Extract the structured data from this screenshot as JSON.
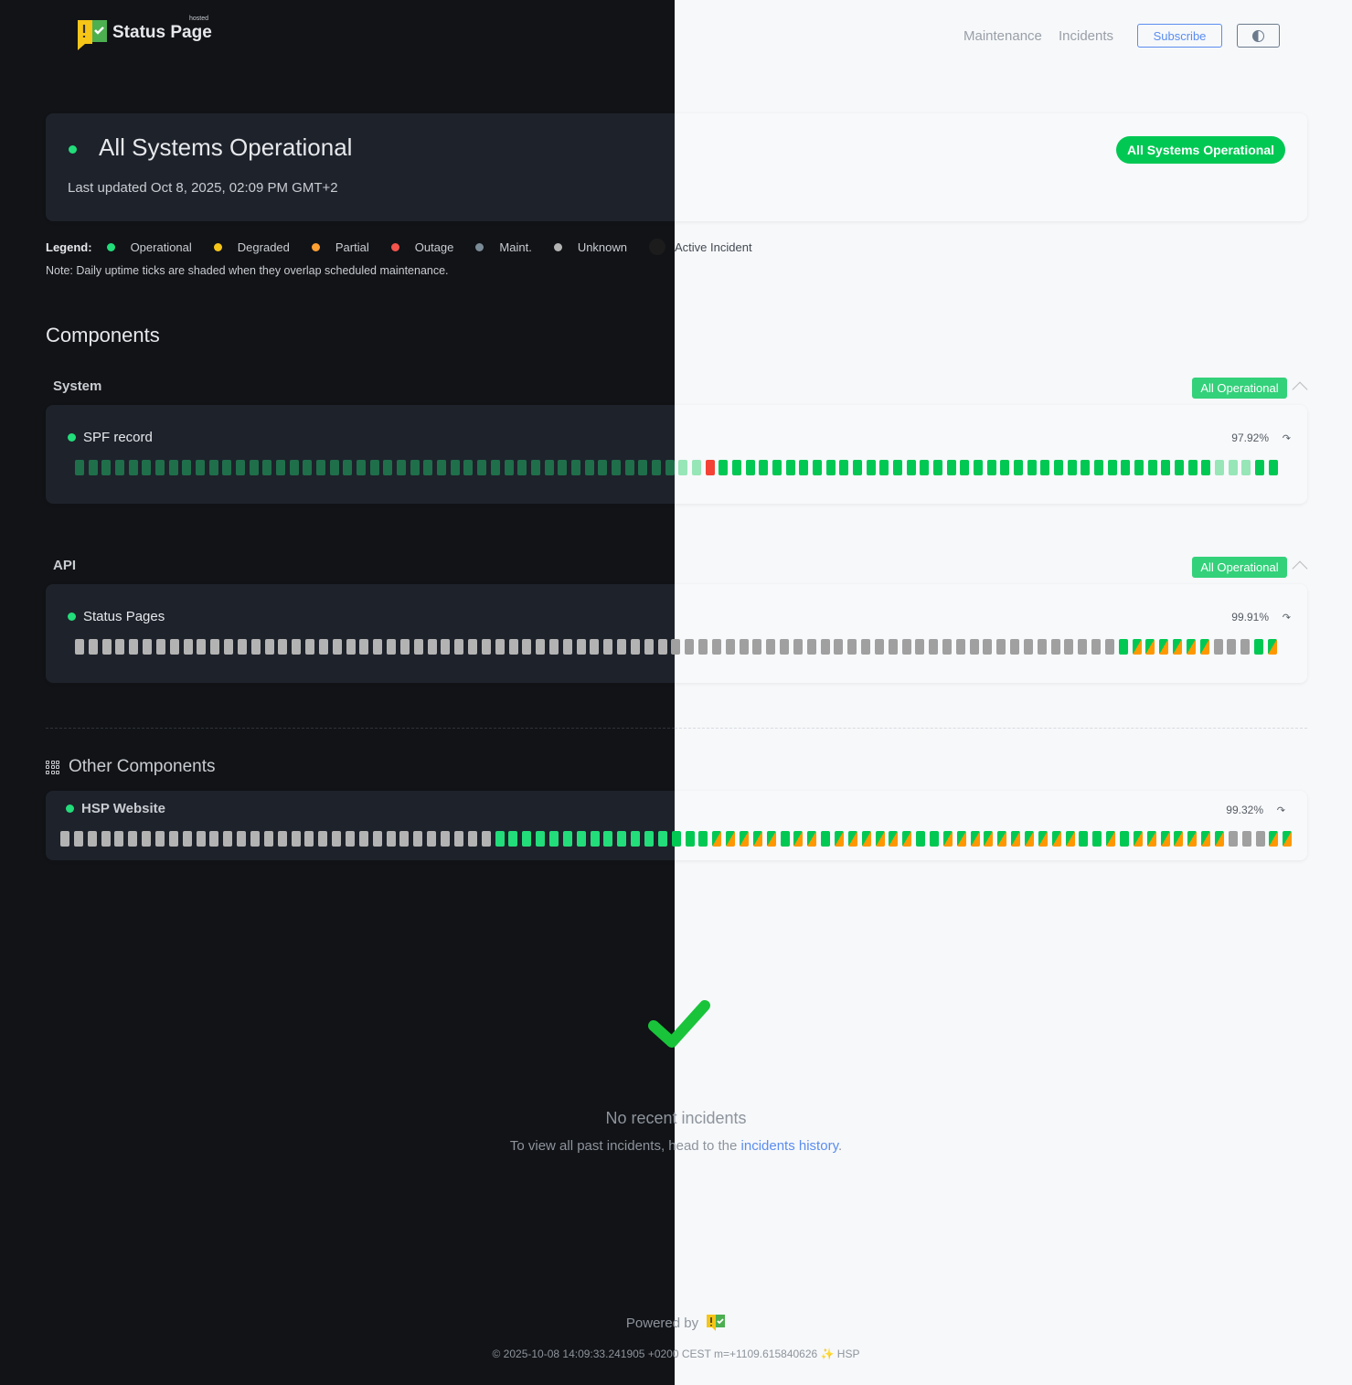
{
  "header": {
    "brand": "Status Page",
    "brand_tag": "hosted",
    "nav": [
      "Maintenance",
      "Incidents"
    ],
    "subscribe_label": "Subscribe",
    "theme_icon": "half-circle-icon"
  },
  "overall": {
    "title": "All Systems Operational",
    "last_updated": "Last updated Oct 8, 2025, 02:09 PM GMT+2",
    "badge": "All Systems Operational"
  },
  "legend": {
    "label": "Legend:",
    "items": [
      {
        "label": "Operational",
        "color": "#22dd7a"
      },
      {
        "label": "Degraded",
        "color": "#f5c518"
      },
      {
        "label": "Partial",
        "color": "#ffa033"
      },
      {
        "label": "Outage",
        "color": "#f4544c"
      },
      {
        "label": "Maint.",
        "color": "#7a8a96"
      },
      {
        "label": "Unknown",
        "color": "#b3b3b3"
      },
      {
        "label": "Active Incident",
        "color": "#1c1c1c"
      }
    ],
    "note": "Note: Daily uptime ticks are shaded when they overlap scheduled maintenance."
  },
  "components_title": "Components",
  "groups": [
    {
      "name": "System",
      "badge": "All Operational",
      "component": {
        "name": "SPF record",
        "uptime": "97.92%",
        "ticks": "sssssssssssssssssssssssssssssssssssssssssssssssrooooooooooooooooooooooooooooooooooooosssoo"
      }
    },
    {
      "name": "API",
      "badge": "All Operational",
      "component": {
        "name": "Status Pages",
        "uptime": "99.91%",
        "ticks": "uuuuuuuuuuuuuuuuuuuuuuuuuuuuuuuuuuuuuuuuuuuuuuuuuuuuuuuuuuuuuuuuuuuuuuuuuuuuuommmmmmuuuom"
      }
    }
  ],
  "tick_legend": {
    "o": "operational",
    "s": "operational (shaded, maintenance overlap)",
    "r": "outage",
    "u": "unknown",
    "m": "operational / partial split"
  },
  "other": {
    "title": "Other Components",
    "component": {
      "name": "HSP Website",
      "uptime": "99.32%",
      "ticks": "uuuuuuuuuuuuuuuuuuuuuuuuuuuuuuuuoooooooooooooooommmmmommommmmmmoommmmmmmmmmoomommmmmmmuuumm"
    }
  },
  "incidents": {
    "title": "No recent incidents",
    "text": "To view all past incidents, head to the",
    "link": "incidents history",
    "period": "."
  },
  "footer": {
    "powered_by": "Powered by",
    "build": "© 2025-10-08 14:09:33.241905 +0200 CEST m=+1109.615840626 ✨ HSP"
  }
}
